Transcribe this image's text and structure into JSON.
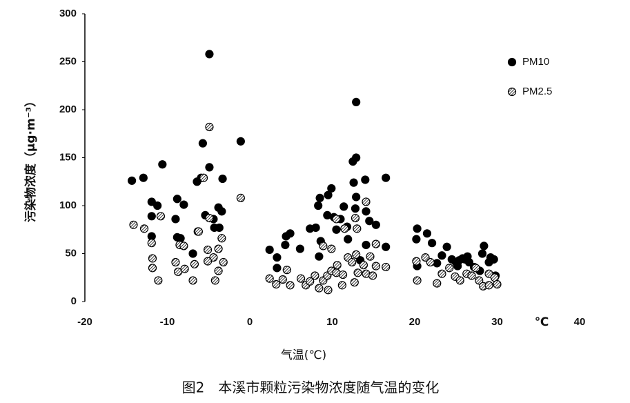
{
  "chart_data": {
    "type": "scatter",
    "caption": "图2　本溪市颗粒污染物浓度随气温的变化",
    "x_label": "气温(℃)",
    "x_unit_label": "℃",
    "y_label": "污染物浓度（μg·m⁻³）",
    "xlim": [
      -20,
      40
    ],
    "xticks": [
      -20,
      -10,
      0,
      10,
      20,
      30,
      40
    ],
    "ylim": [
      0,
      300
    ],
    "yticks": [
      0,
      50,
      100,
      150,
      200,
      250,
      300
    ],
    "legend": "top-right",
    "series": [
      {
        "name": "PM10",
        "color": "#000000",
        "marker": "filled",
        "x": [
          -14.3,
          -12.9,
          -10.6,
          -11.9,
          -11.2,
          -11.9,
          -11.9,
          -8.8,
          -8.0,
          -9.0,
          -8.8,
          -8.4,
          -6.9,
          -5.7,
          -4.9,
          -4.9,
          -6.4,
          -5.9,
          -5.4,
          -6.3,
          -4.4,
          -3.8,
          -3.4,
          -4.3,
          -3.7,
          -3.3,
          -1.1,
          2.4,
          3.3,
          4.3,
          4.4,
          4.9,
          3.3,
          6.1,
          7.3,
          8.0,
          8.6,
          8.4,
          8.3,
          8.5,
          9.5,
          9.9,
          9.4,
          10.2,
          10.5,
          11.0,
          11.4,
          11.8,
          11.9,
          12.5,
          12.9,
          12.9,
          12.6,
          14.0,
          12.9,
          12.8,
          14.1,
          14.5,
          15.3,
          14.1,
          13.4,
          16.5,
          16.5,
          20.3,
          21.5,
          20.2,
          22.1,
          20.3,
          23.9,
          23.3,
          22.7,
          24.5,
          25.0,
          25.4,
          25.8,
          26.1,
          25.2,
          26.6,
          27.2,
          26.4,
          28.2,
          28.4,
          29.0,
          29.2,
          29.6,
          29.8,
          27.9
        ],
        "values": [
          126,
          129,
          143,
          104,
          100,
          89,
          68,
          107,
          101,
          86,
          67,
          66,
          50,
          165,
          258,
          140,
          125,
          129,
          90,
          73,
          86,
          98,
          94,
          77,
          77,
          128,
          167,
          54,
          46,
          59,
          68,
          71,
          35,
          55,
          76,
          77,
          63,
          47,
          100,
          108,
          111,
          118,
          90,
          88,
          75,
          86,
          99,
          78,
          65,
          146,
          150,
          208,
          124,
          127,
          109,
          97,
          94,
          84,
          80,
          59,
          43,
          129,
          57,
          76,
          71,
          65,
          61,
          37,
          57,
          48,
          40,
          44,
          41,
          43,
          45,
          44,
          37,
          41,
          36,
          47,
          50,
          58,
          41,
          46,
          44,
          27,
          32
        ]
      },
      {
        "name": "PM2.5",
        "color": "#000000",
        "marker": "hatched",
        "x": [
          -14.1,
          -12.8,
          -10.8,
          -11.9,
          -11.8,
          -11.8,
          -11.1,
          -8.5,
          -8.0,
          -9.0,
          -8.7,
          -7.9,
          -6.7,
          -6.9,
          -5.6,
          -4.9,
          -4.9,
          -6.2,
          -5.1,
          -4.4,
          -5.1,
          -3.8,
          -3.4,
          -3.2,
          -3.8,
          -4.2,
          -1.1,
          2.4,
          3.2,
          4.0,
          4.5,
          4.9,
          6.2,
          6.8,
          7.3,
          7.9,
          8.4,
          8.9,
          9.4,
          9.9,
          9.5,
          10.5,
          10.6,
          11.3,
          11.2,
          11.9,
          12.4,
          12.9,
          13.1,
          12.7,
          13.8,
          14.1,
          14.9,
          15.3,
          14.6,
          8.9,
          9.9,
          10.5,
          11.5,
          12.8,
          13.0,
          14.1,
          15.3,
          16.5,
          20.2,
          20.3,
          21.3,
          21.9,
          22.7,
          23.3,
          24.2,
          24.9,
          25.5,
          26.3,
          26.9,
          27.4,
          27.8,
          28.3,
          29.0,
          29.7,
          30.0,
          29.0
        ],
        "values": [
          80,
          76,
          89,
          61,
          45,
          35,
          22,
          59,
          58,
          41,
          31,
          34,
          39,
          22,
          129,
          182,
          87,
          73,
          54,
          46,
          42,
          55,
          66,
          41,
          32,
          22,
          108,
          24,
          18,
          23,
          33,
          17,
          24,
          17,
          21,
          27,
          14,
          22,
          27,
          32,
          12,
          30,
          38,
          28,
          17,
          46,
          41,
          49,
          30,
          20,
          38,
          29,
          27,
          37,
          47,
          58,
          55,
          86,
          76,
          87,
          76,
          104,
          60,
          36,
          42,
          22,
          46,
          41,
          19,
          29,
          35,
          26,
          22,
          29,
          27,
          35,
          22,
          16,
          29,
          25,
          18,
          17
        ]
      }
    ]
  }
}
